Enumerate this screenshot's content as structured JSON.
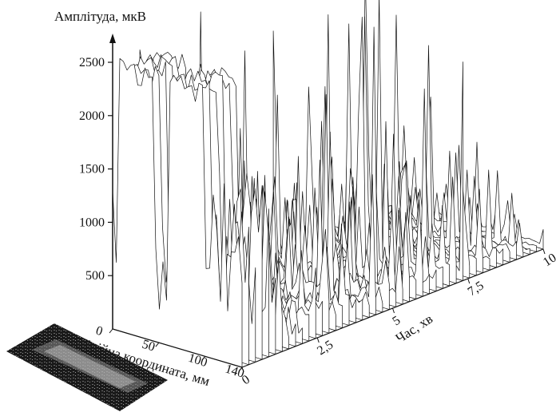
{
  "chart_data": {
    "type": "area",
    "subtype": "3d-waterfall",
    "zlabel": "Амплітуда, мкВ",
    "xlabel": "Лінійна координата, мм",
    "ylabel": "Час, хв",
    "z_ticks": [
      "500",
      "1000",
      "1500",
      "2000",
      "2500"
    ],
    "z_tick_values": [
      500,
      1000,
      1500,
      2000,
      2500
    ],
    "x_ticks": [
      "0",
      "50",
      "100",
      "140"
    ],
    "x_tick_values": [
      0,
      50,
      100,
      140
    ],
    "y_ticks": [
      "0",
      "2,5",
      "5",
      "7,5",
      "10"
    ],
    "y_tick_values": [
      0,
      2.5,
      5,
      7.5,
      10
    ],
    "zlim": [
      0,
      2600
    ],
    "xlim": [
      0,
      140
    ],
    "ylim": [
      0,
      10
    ],
    "line_color": "#111111",
    "fill_color": "#ffffff",
    "inset_image": "specimen-photo"
  }
}
